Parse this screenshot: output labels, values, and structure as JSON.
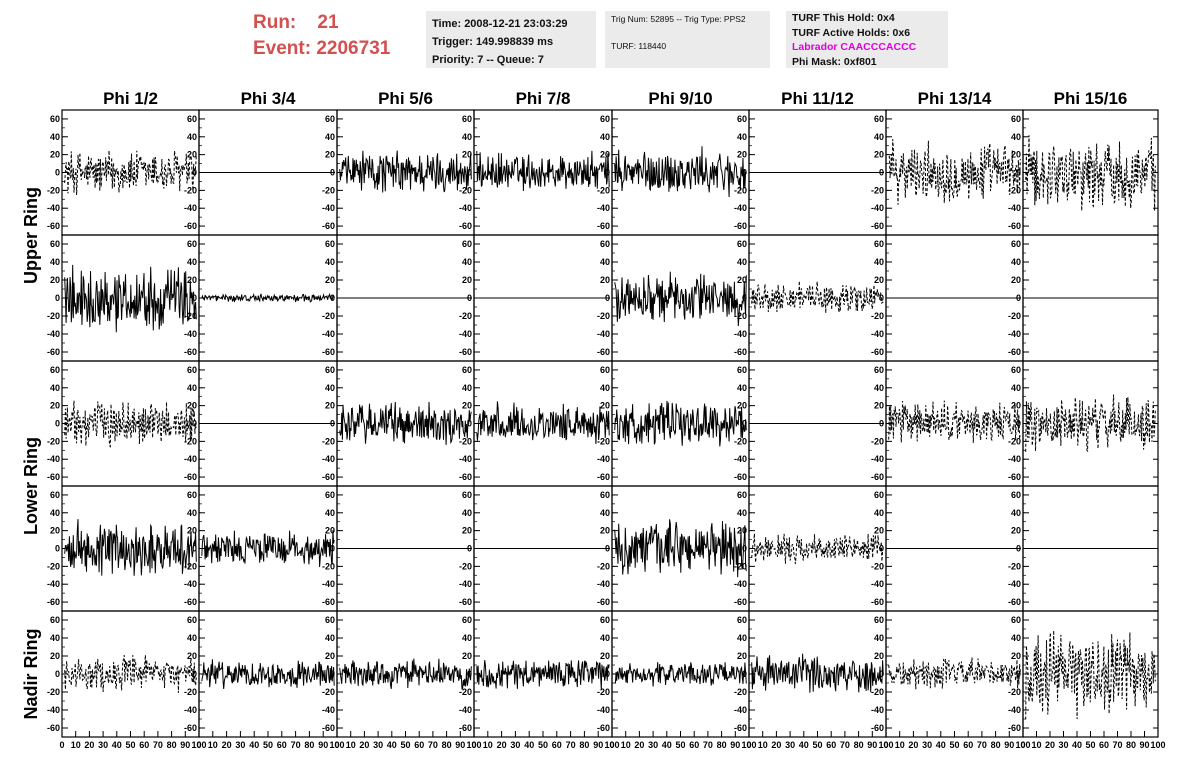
{
  "header": {
    "run_label": "Run:",
    "run_value": "21",
    "event_label": "Event:",
    "event_value": "2206731",
    "time": "Time: 2008-12-21 23:03:29",
    "trigger": "Trigger: 149.998839 ms",
    "priority": "Priority: 7 -- Queue: 7",
    "trig_num": "Trig Num: 52895 -- Trig Type: PPS2",
    "turf": "TURF: 118440",
    "turf_hold": "TURF This Hold: 0x4",
    "turf_active": "TURF Active Holds: 0x6",
    "labrador": "Labrador CAACCCACCC",
    "phi_mask": "Phi Mask: 0xf801"
  },
  "colors": {
    "run_text": "#d2504f",
    "labrador_text": "#e000e0",
    "info_bg": "#ebebeb",
    "trace": "#000000"
  },
  "chart_data": {
    "type": "line",
    "columns": [
      "Phi 1/2",
      "Phi 3/4",
      "Phi 5/6",
      "Phi 7/8",
      "Phi 9/10",
      "Phi 11/12",
      "Phi 13/14",
      "Phi 15/16"
    ],
    "rows": [
      "Upper Ring",
      "Lower Ring",
      "Nadir Ring"
    ],
    "xlim": [
      0,
      100
    ],
    "ylim": [
      -70,
      70
    ],
    "x_ticks": [
      "0",
      "10",
      "20",
      "30",
      "40",
      "50",
      "60",
      "70",
      "80",
      "90",
      "100"
    ],
    "y_ticks": [
      "60",
      "40",
      "20",
      "0",
      "-20",
      "-40",
      "-60"
    ],
    "y_tick_values": [
      60,
      40,
      20,
      0,
      -20,
      -40,
      -60
    ],
    "panels": [
      [
        "dashed:30",
        "flat",
        "solid:28",
        "solid:25",
        "solid:30",
        "flat",
        "dashed:38",
        "dashed:45"
      ],
      [
        "solid:40",
        "solid:5",
        "flat",
        "flat",
        "solid:32",
        "dashed:20",
        "flat",
        "flat"
      ],
      [
        "dashed:30",
        "flat",
        "solid:28",
        "solid:25",
        "solid:28",
        "flat",
        "dashed:28",
        "dashed:35"
      ],
      [
        "solid:35",
        "solid:22",
        "flat",
        "flat",
        "solid:35",
        "dashed:18",
        "flat",
        "flat"
      ],
      [
        "dashed:22",
        "solid:18",
        "solid:18",
        "solid:20",
        "solid:15",
        "solid:25",
        "dashed:20",
        "dashed:55"
      ]
    ]
  }
}
